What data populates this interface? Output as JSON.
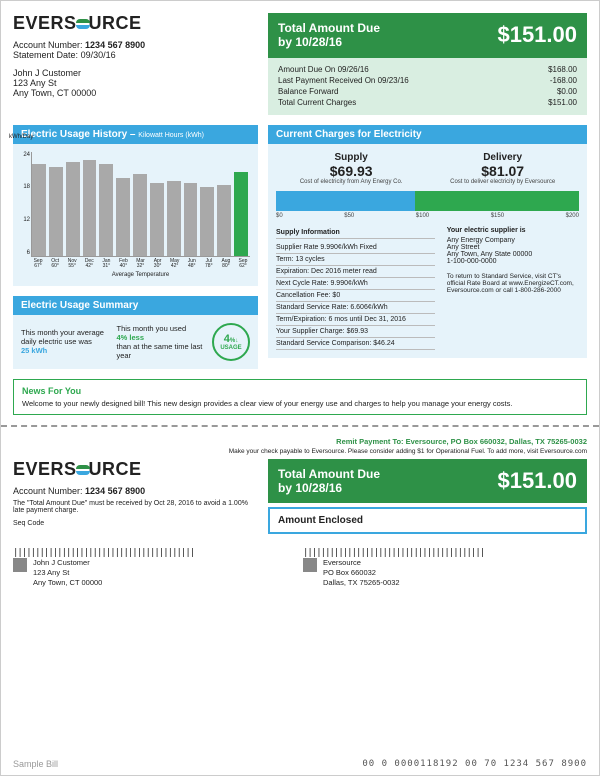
{
  "company": "EVERSOURCE",
  "account": {
    "label": "Account Number:",
    "number": "1234 567 8900",
    "stmt_label": "Statement Date:",
    "stmt": "09/30/16"
  },
  "customer": {
    "name": "John J Customer",
    "street": "123 Any St",
    "city": "Any Town, CT 00000"
  },
  "total": {
    "title": "Total Amount Due",
    "by": "by 10/28/16",
    "amount": "$151.00"
  },
  "breakdown": [
    {
      "l": "Amount Due On 09/26/16",
      "v": "$168.00"
    },
    {
      "l": "Last Payment Received On 09/23/16",
      "v": "-168.00"
    },
    {
      "l": "Balance Forward",
      "v": "$0.00"
    },
    {
      "l": "Total Current Charges",
      "v": "$151.00"
    }
  ],
  "usage_hdr": "Electric Usage History –",
  "usage_sub": "Kilowatt Hours (kWh)",
  "chart": {
    "ylabel": "kWh/Day",
    "yticks": [
      "24",
      "18",
      "12",
      "6"
    ],
    "bars": [
      {
        "m": "Sep",
        "t": "67°",
        "h": 88
      },
      {
        "m": "Oct",
        "t": "60°",
        "h": 85
      },
      {
        "m": "Nov",
        "t": "55°",
        "h": 90
      },
      {
        "m": "Dec",
        "t": "42°",
        "h": 92
      },
      {
        "m": "Jan",
        "t": "31°",
        "h": 88
      },
      {
        "m": "Feb",
        "t": "40°",
        "h": 75
      },
      {
        "m": "Mar",
        "t": "32°",
        "h": 78
      },
      {
        "m": "Apr",
        "t": "30°",
        "h": 70
      },
      {
        "m": "May",
        "t": "42°",
        "h": 72
      },
      {
        "m": "Jun",
        "t": "48°",
        "h": 70
      },
      {
        "m": "Jul",
        "t": "78°",
        "h": 66
      },
      {
        "m": "Aug",
        "t": "80°",
        "h": 68
      },
      {
        "m": "Sep",
        "t": "62°",
        "h": 80,
        "cur": true
      }
    ],
    "xfoot": "Average Temperature"
  },
  "summary_hdr": "Electric Usage Summary",
  "summary": {
    "c1a": "This month your average daily electric use was",
    "c1b": "25 kWh",
    "c2a": "This month you used",
    "c2b": "4% less",
    "c2c": "than at the same time last year",
    "badge_pct": "4",
    "badge_unit": "%",
    "badge_txt": "USAGE"
  },
  "charges_hdr": "Current Charges for Electricity",
  "charges": {
    "supply_l": "Supply",
    "supply_v": "$69.93",
    "supply_n": "Cost of electricity from Any Energy Co.",
    "delivery_l": "Delivery",
    "delivery_v": "$81.07",
    "delivery_n": "Cost to deliver electricity by Eversource",
    "s1": 46,
    "s2": 54,
    "scale": [
      "$0",
      "$50",
      "$100",
      "$150",
      "$200"
    ]
  },
  "supply_info": {
    "title": "Supply Information",
    "rows": [
      "Supplier Rate 9.990¢/kWh Fixed",
      "Term: 13 cycles",
      "Expiration: Dec 2016 meter read",
      "Next Cycle Rate: 9.990¢/kWh",
      "Cancellation Fee: $0",
      "Standard Service Rate: 6.606¢/kWh",
      "Term/Expiration: 6 mos until Dec 31, 2016",
      "Your Supplier Charge: $69.93",
      "Standard Service Comparison: $46.24"
    ]
  },
  "supplier": {
    "title": "Your electric supplier is",
    "rows": [
      "Any Energy Company",
      "Any Street",
      "Any Town, Any State 00000",
      "1-100-000-0000"
    ],
    "note": "To return to Standard Service, visit CT's official Rate Board at www.EnergizeCT.com, Eversource.com or call 1-800-286-2000"
  },
  "news": {
    "title": "News For You",
    "body": "Welcome to your newly designed bill! This new design provides a clear view of your energy use and charges to help you manage your energy costs."
  },
  "remit": {
    "line": "Remit Payment To: Eversource, PO Box 660032, Dallas, TX 75265-0032",
    "note": "Make your check payable to Eversource. Please consider adding $1 for Operational Fuel. To add more, visit Eversource.com"
  },
  "stub": {
    "acct_note": "The \"Total Amount Due\" must be received by Oct 28, 2016 to avoid a 1.00% late payment charge.",
    "seq": "Seq Code",
    "enclosed": "Amount Enclosed"
  },
  "payee": {
    "name": "Eversource",
    "street": "PO Box 660032",
    "city": "Dallas, TX 75265-0032"
  },
  "footer": {
    "l": "Sample Bill",
    "r": "00 0 0000118192 00 70 1234 567 8900"
  }
}
